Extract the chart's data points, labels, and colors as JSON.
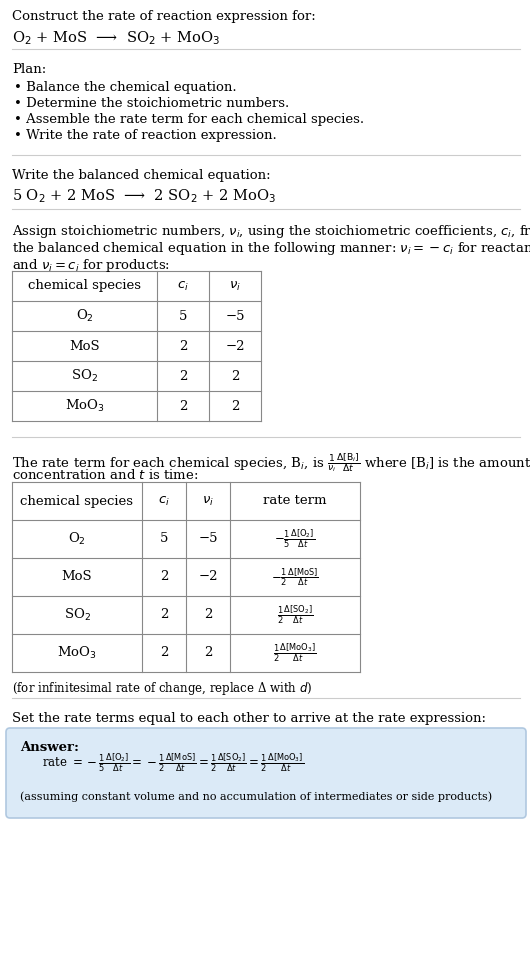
{
  "bg_color": "#ffffff",
  "title_line1": "Construct the rate of reaction expression for:",
  "reaction_unbalanced": "O$_2$ + MoS  ⟶  SO$_2$ + MoO$_3$",
  "plan_header": "Plan:",
  "plan_items": [
    "• Balance the chemical equation.",
    "• Determine the stoichiometric numbers.",
    "• Assemble the rate term for each chemical species.",
    "• Write the rate of reaction expression."
  ],
  "balanced_header": "Write the balanced chemical equation:",
  "balanced_eq": "5 O$_2$ + 2 MoS  ⟶  2 SO$_2$ + 2 MoO$_3$",
  "stoich_intro1": "Assign stoichiometric numbers, $\\nu_i$, using the stoichiometric coefficients, $c_i$, from",
  "stoich_intro2": "the balanced chemical equation in the following manner: $\\nu_i = -c_i$ for reactants",
  "stoich_intro3": "and $\\nu_i = c_i$ for products:",
  "table1_headers": [
    "chemical species",
    "$c_i$",
    "$\\nu_i$"
  ],
  "table1_rows": [
    [
      "O$_2$",
      "5",
      "−5"
    ],
    [
      "MoS",
      "2",
      "−2"
    ],
    [
      "SO$_2$",
      "2",
      "2"
    ],
    [
      "MoO$_3$",
      "2",
      "2"
    ]
  ],
  "rate_intro1": "The rate term for each chemical species, B$_i$, is $\\frac{1}{\\nu_i}\\frac{\\Delta[\\mathrm{B}_i]}{\\Delta t}$ where [B$_i$] is the amount",
  "rate_intro2": "concentration and $t$ is time:",
  "table2_headers": [
    "chemical species",
    "$c_i$",
    "$\\nu_i$",
    "rate term"
  ],
  "table2_rows": [
    [
      "O$_2$",
      "5",
      "−5",
      "$-\\frac{1}{5}\\frac{\\Delta[\\mathrm{O_2}]}{\\Delta t}$"
    ],
    [
      "MoS",
      "2",
      "−2",
      "$-\\frac{1}{2}\\frac{\\Delta[\\mathrm{MoS}]}{\\Delta t}$"
    ],
    [
      "SO$_2$",
      "2",
      "2",
      "$\\frac{1}{2}\\frac{\\Delta[\\mathrm{SO_2}]}{\\Delta t}$"
    ],
    [
      "MoO$_3$",
      "2",
      "2",
      "$\\frac{1}{2}\\frac{\\Delta[\\mathrm{MoO_3}]}{\\Delta t}$"
    ]
  ],
  "infinitesimal_note": "(for infinitesimal rate of change, replace Δ with $d$)",
  "set_equal_header": "Set the rate terms equal to each other to arrive at the rate expression:",
  "answer_bg": "#dbeaf7",
  "answer_border": "#b0c8e0",
  "answer_label": "Answer:",
  "answer_eq": "rate $= -\\frac{1}{5}\\frac{\\Delta[\\mathrm{O_2}]}{\\Delta t} = -\\frac{1}{2}\\frac{\\Delta[\\mathrm{MoS}]}{\\Delta t} = \\frac{1}{2}\\frac{\\Delta[\\mathrm{SO_2}]}{\\Delta t} = \\frac{1}{2}\\frac{\\Delta[\\mathrm{MoO_3}]}{\\Delta t}$",
  "answer_note": "(assuming constant volume and no accumulation of intermediates or side products)",
  "sep_color": "#cccccc",
  "table_line_color": "#888888",
  "fs": 9.5,
  "fs_small": 8.5
}
